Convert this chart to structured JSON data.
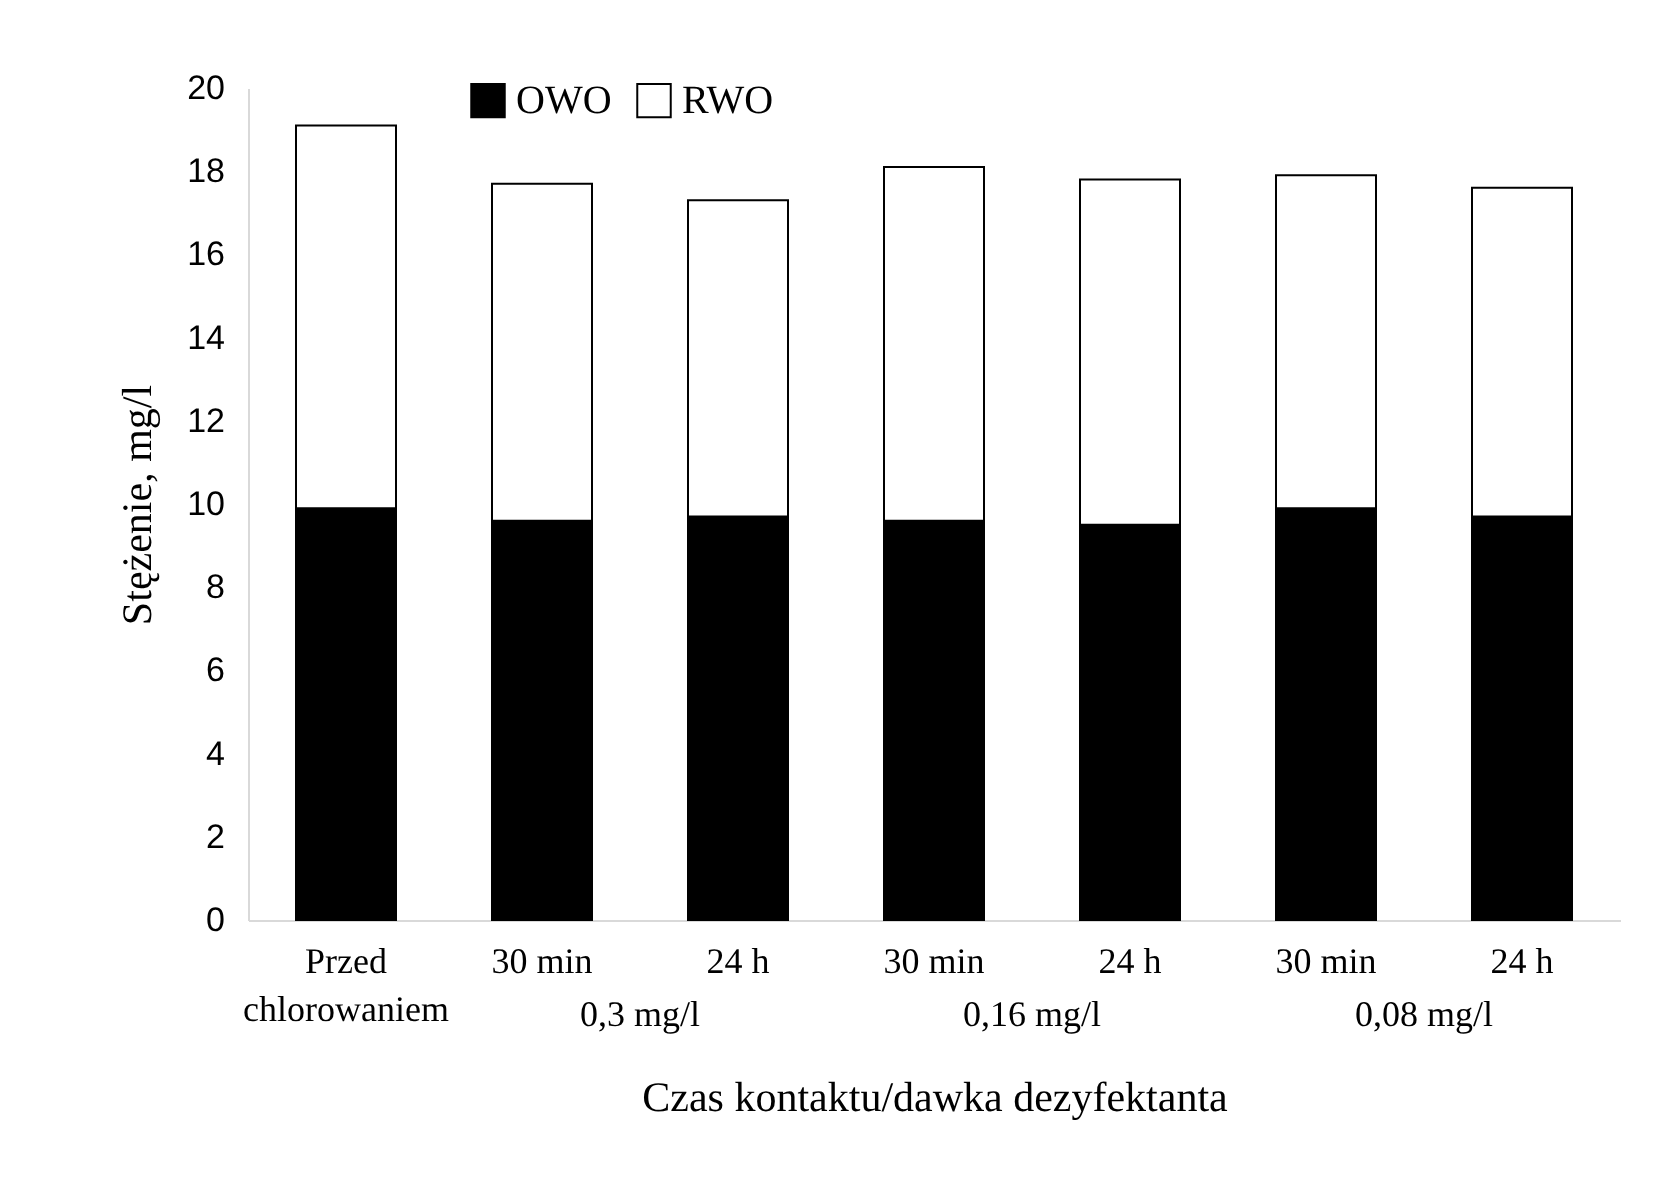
{
  "chart_data": {
    "type": "bar",
    "stacked": true,
    "categories": [
      "Przed chlorowaniem",
      "30 min",
      "24 h",
      "30 min",
      "24 h",
      "30 min",
      "24 h"
    ],
    "series": [
      {
        "name": "OWO",
        "color": "#000000",
        "values": [
          9.9,
          9.6,
          9.7,
          9.6,
          9.5,
          9.9,
          9.7
        ]
      },
      {
        "name": "RWO",
        "color": "#ffffff",
        "values": [
          9.2,
          8.1,
          7.6,
          8.5,
          8.3,
          8.0,
          7.9
        ]
      }
    ],
    "ylim": [
      0,
      20
    ],
    "yticks": [
      0,
      2,
      4,
      6,
      8,
      10,
      12,
      14,
      16,
      18,
      20
    ],
    "ylabel": "Stężenie, mg/l",
    "xlabel": "Czas kontaktu/dawka dezyfektanta",
    "annotations": [
      "0,3 mg/l",
      "0,16 mg/l",
      "0,08 mg/l"
    ],
    "legend": "top",
    "grid": false
  }
}
